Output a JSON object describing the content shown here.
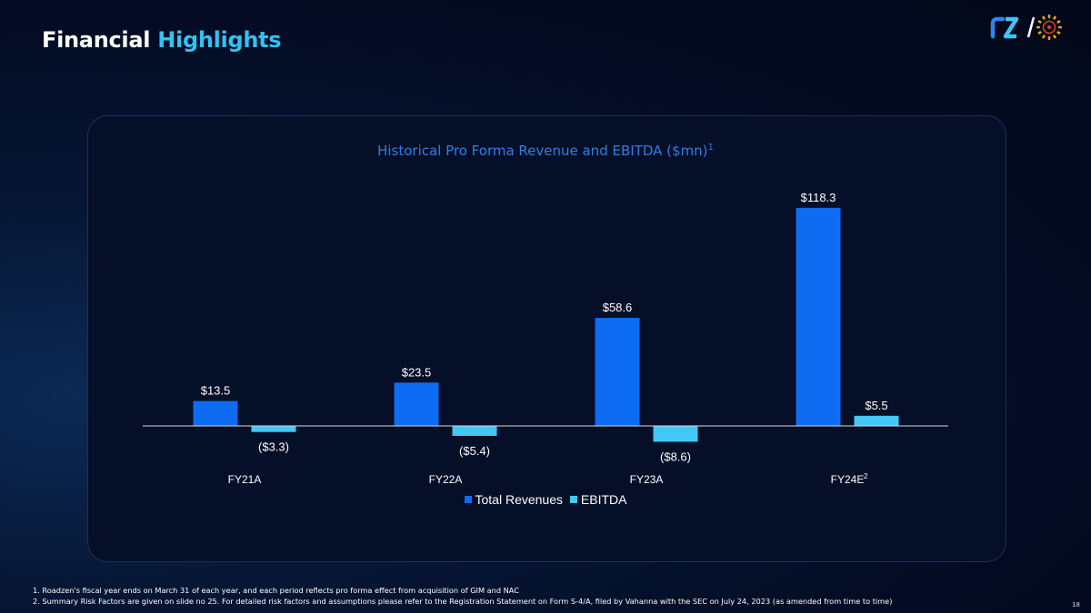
{
  "header": {
    "title_main": "Financial",
    "title_accent": "Highlights",
    "title_color_accent": "#2fc3f2"
  },
  "logos": {
    "left_name": "roadzen-logo",
    "right_name": "emblem-logo"
  },
  "chart_data": {
    "type": "bar",
    "title": "Historical Pro Forma Revenue and EBITDA ($mn)",
    "title_footnote": "1",
    "categories": [
      "FY21A",
      "FY22A",
      "FY23A",
      "FY24E"
    ],
    "category_footnotes": [
      "",
      "",
      "",
      "2"
    ],
    "series": [
      {
        "name": "Total Revenues",
        "color": "#0d6cf2",
        "values": [
          13.5,
          23.5,
          58.6,
          118.3
        ],
        "labels": [
          "$13.5",
          "$23.5",
          "$58.6",
          "$118.3"
        ]
      },
      {
        "name": "EBITDA",
        "color": "#43c8f5",
        "values": [
          -3.3,
          -5.4,
          -8.6,
          5.5
        ],
        "labels": [
          "($3.3)",
          "($5.4)",
          "($8.6)",
          "$5.5"
        ]
      }
    ],
    "ylim": [
      -10,
      125
    ],
    "legend_position": "bottom",
    "grid": false
  },
  "footnotes": [
    "1. Roadzen's fiscal year ends on March 31 of each year, and each period reflects pro forma effect from acquisition of GIM and NAC",
    "2. Summary Risk Factors are given on slide no 25. For detailed risk factors and assumptions please refer to the Registration Statement on Form S-4/A, filed by Vahanna with the SEC on July 24, 2023 (as amended from time to time)"
  ],
  "page_number": "18"
}
